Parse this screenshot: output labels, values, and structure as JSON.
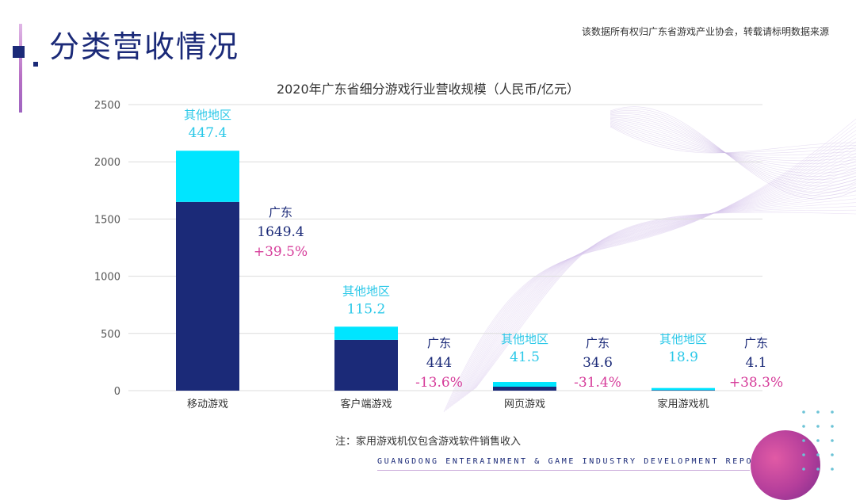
{
  "header": {
    "title": "分类营收情况",
    "copyright": "该数据所有权归广东省游戏产业协会，转载请标明数据来源"
  },
  "footer": {
    "note": "注：家用游戏机仅包含游戏软件销售收入",
    "report": "GUANGDONG ENTERAINMENT & GAME INDUSTRY DEVELOPMENT REPORT"
  },
  "colors": {
    "guangdong": "#1b2a78",
    "other": "#00e5ff",
    "label_other": "#2bc8e8",
    "label_gd": "#1b2a78",
    "growth": "#d63c9a"
  },
  "chart_data": {
    "type": "bar",
    "stacked": true,
    "title": "2020年广东省细分游戏行业营收规模（人民币/亿元）",
    "categories": [
      "移动游戏",
      "客户端游戏",
      "网页游戏",
      "家用游戏机"
    ],
    "series": [
      {
        "name": "广东",
        "values": [
          1649.4,
          444,
          34.6,
          4.1
        ]
      },
      {
        "name": "其他地区",
        "values": [
          447.4,
          115.2,
          41.5,
          18.9
        ]
      }
    ],
    "gd_value_labels": [
      "1649.4",
      "444",
      "34.6",
      "4.1"
    ],
    "other_value_labels": [
      "447.4",
      "115.2",
      "41.5",
      "18.9"
    ],
    "growth_labels": [
      "+39.5%",
      "-13.6%",
      "-31.4%",
      "+38.3%"
    ],
    "yticks": [
      "0",
      "500",
      "1000",
      "1500",
      "2000",
      "2500"
    ],
    "ylim": [
      0,
      2500
    ],
    "grid": true
  }
}
